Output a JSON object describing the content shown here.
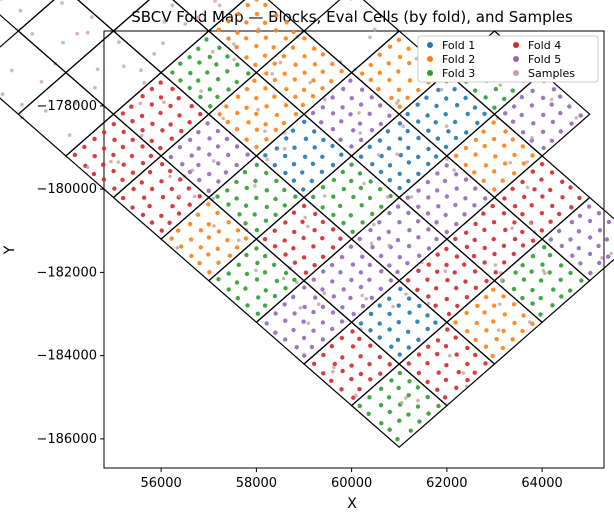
{
  "chart_data": {
    "type": "scatter",
    "title": "SBCV Fold Map — Blocks, Eval Cells (by fold), and Samples",
    "xlabel": "X",
    "ylabel": "Y",
    "xlim": [
      54800,
      65300
    ],
    "ylim": [
      -186700,
      -176200
    ],
    "xticks": [
      56000,
      58000,
      60000,
      62000,
      64000
    ],
    "yticks": [
      -178000,
      -180000,
      -182000,
      -184000,
      -186000
    ],
    "xtick_labels": [
      "56000",
      "58000",
      "60000",
      "62000",
      "64000"
    ],
    "ytick_labels": [
      "−178000",
      "−180000",
      "−182000",
      "−184000",
      "−186000"
    ],
    "grid": false,
    "legend_position": "top-right",
    "legend": [
      {
        "name": "Fold 1",
        "color": "#1f77b4"
      },
      {
        "name": "Fold 4",
        "color": "#d62728"
      },
      {
        "name": "Fold 2",
        "color": "#ff7f0e"
      },
      {
        "name": "Fold 5",
        "color": "#9467bd"
      },
      {
        "name": "Fold 3",
        "color": "#2ca02c"
      },
      {
        "name": "Samples",
        "color": "#c9a0a0"
      }
    ],
    "block_grid": {
      "origin": [
        61000,
        -186200
      ],
      "u_vector": [
        1000,
        1000
      ],
      "v_vector": [
        -1000,
        1000
      ],
      "u_count": 4,
      "v_count": 7,
      "extra_cells": [
        [
          4,
          0
        ],
        [
          4,
          1
        ],
        [
          4,
          2
        ],
        [
          4,
          3
        ],
        [
          0,
          7
        ],
        [
          1,
          7
        ],
        [
          2,
          7
        ],
        [
          3,
          7
        ],
        [
          5,
          2
        ],
        [
          4,
          4
        ],
        [
          3,
          8
        ],
        [
          2,
          8
        ],
        [
          1,
          8
        ],
        [
          0,
          8
        ],
        [
          5,
          3
        ],
        [
          4,
          5
        ],
        [
          3,
          6
        ],
        [
          2,
          9
        ],
        [
          1,
          9
        ]
      ]
    },
    "folds": {
      "colors": {
        "1": "#1f77b4",
        "2": "#ff7f0e",
        "3": "#2ca02c",
        "4": "#d62728",
        "5": "#9467bd"
      },
      "cells": [
        {
          "u": 0,
          "v": 0,
          "fold": 3
        },
        {
          "u": 0,
          "v": 1,
          "fold": 4
        },
        {
          "u": 0,
          "v": 2,
          "fold": 5
        },
        {
          "u": 0,
          "v": 3,
          "fold": 3
        },
        {
          "u": 0,
          "v": 4,
          "fold": 2
        },
        {
          "u": 0,
          "v": 5,
          "fold": 4
        },
        {
          "u": 0,
          "v": 6,
          "fold": 4
        },
        {
          "u": 1,
          "v": 0,
          "fold": 4
        },
        {
          "u": 1,
          "v": 1,
          "fold": 1
        },
        {
          "u": 1,
          "v": 2,
          "fold": 5
        },
        {
          "u": 1,
          "v": 3,
          "fold": 4
        },
        {
          "u": 1,
          "v": 4,
          "fold": 3
        },
        {
          "u": 1,
          "v": 5,
          "fold": 5
        },
        {
          "u": 1,
          "v": 6,
          "fold": 4
        },
        {
          "u": 2,
          "v": 0,
          "fold": 2
        },
        {
          "u": 2,
          "v": 1,
          "fold": 4
        },
        {
          "u": 2,
          "v": 2,
          "fold": 5
        },
        {
          "u": 2,
          "v": 3,
          "fold": 3
        },
        {
          "u": 2,
          "v": 4,
          "fold": 1
        },
        {
          "u": 2,
          "v": 5,
          "fold": 2
        },
        {
          "u": 2,
          "v": 6,
          "fold": 3
        },
        {
          "u": 3,
          "v": 0,
          "fold": 3
        },
        {
          "u": 3,
          "v": 1,
          "fold": 4
        },
        {
          "u": 3,
          "v": 2,
          "fold": 5
        },
        {
          "u": 3,
          "v": 3,
          "fold": 1
        },
        {
          "u": 3,
          "v": 4,
          "fold": 5
        },
        {
          "u": 3,
          "v": 5,
          "fold": 2
        },
        {
          "u": 3,
          "v": 6,
          "fold": 2
        },
        {
          "u": 4,
          "v": 0,
          "fold": 5
        },
        {
          "u": 4,
          "v": 1,
          "fold": 4
        },
        {
          "u": 4,
          "v": 2,
          "fold": 2
        },
        {
          "u": 4,
          "v": 3,
          "fold": 1
        },
        {
          "u": 4,
          "v": 4,
          "fold": 2
        },
        {
          "u": 5,
          "v": 2,
          "fold": 5
        },
        {
          "u": 5,
          "v": 3,
          "fold": 3
        }
      ]
    }
  }
}
